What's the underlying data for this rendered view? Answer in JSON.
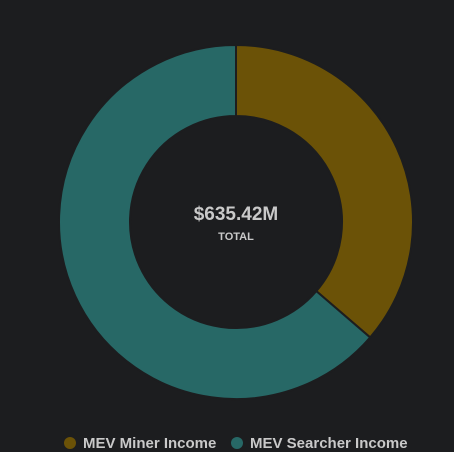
{
  "chart_data": {
    "type": "donut",
    "center_label": "$635.42M",
    "center_sublabel": "TOTAL",
    "categories": [
      "MEV Miner Income",
      "MEV Searcher Income"
    ],
    "values": [
      230.7,
      404.72
    ],
    "colors": [
      "#6b5207",
      "#276866"
    ]
  }
}
